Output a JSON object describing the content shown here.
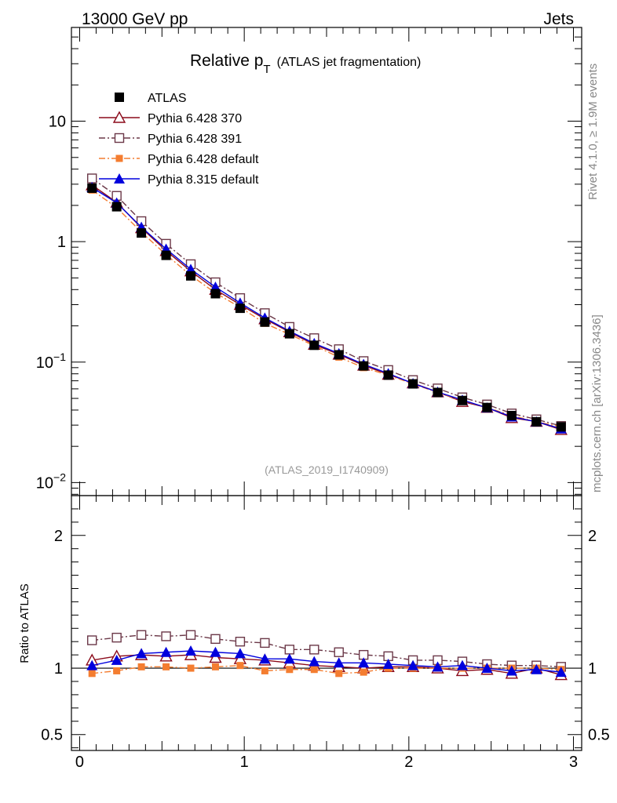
{
  "header": {
    "left": "13000 GeV pp",
    "right": "Jets"
  },
  "side": {
    "rivet": "Rivet 4.1.0, ≥ 1.9M events",
    "mcplots": "mcplots.cern.ch [arXiv:1306.3436]"
  },
  "chart_data": {
    "type": "line",
    "title_main": "Relative p",
    "title_sub": "T",
    "title_paren": "(ATLAS jet fragmentation)",
    "analysis_id": "(ATLAS_2019_I1740909)",
    "x": [
      0.075,
      0.225,
      0.375,
      0.525,
      0.675,
      0.825,
      0.975,
      1.125,
      1.275,
      1.425,
      1.575,
      1.725,
      1.875,
      2.025,
      2.175,
      2.325,
      2.475,
      2.625,
      2.775,
      2.925
    ],
    "xlim": [
      -0.05,
      3.05
    ],
    "xticks": [
      0,
      1,
      2,
      3
    ],
    "xticklabels": [
      "0",
      "1",
      "2",
      "3"
    ],
    "main": {
      "yscale": "log",
      "ylim": [
        0.0078,
        60
      ],
      "yticks": [
        {
          "value": 10,
          "base": "10",
          "exp": ""
        },
        {
          "value": 1,
          "base": "1",
          "exp": ""
        },
        {
          "value": 0.1,
          "base": "10",
          "exp": "−1"
        },
        {
          "value": 0.01,
          "base": "10",
          "exp": "−2"
        }
      ]
    },
    "ratio": {
      "ylabel": "Ratio to ATLAS",
      "ylim": [
        0.38,
        2.3
      ],
      "yticks": [
        {
          "value": 2,
          "label": "2"
        },
        {
          "value": 1,
          "label": "1"
        },
        {
          "value": 0.5,
          "label": "0.5"
        }
      ]
    },
    "series": [
      {
        "name": "ATLAS",
        "color": "#000000",
        "marker": "filled-square",
        "line": "none",
        "values": [
          2.78,
          1.95,
          1.18,
          0.77,
          0.52,
          0.37,
          0.28,
          0.215,
          0.172,
          0.138,
          0.115,
          0.093,
          0.078,
          0.066,
          0.056,
          0.048,
          0.042,
          0.036,
          0.032,
          0.029
        ]
      },
      {
        "name": "Pythia 6.428 370",
        "color": "#8b0a1a",
        "marker": "open-triangle",
        "line": "solid",
        "values": [
          2.95,
          2.12,
          1.3,
          0.84,
          0.57,
          0.4,
          0.3,
          0.228,
          0.178,
          0.14,
          0.116,
          0.094,
          0.079,
          0.067,
          0.0565,
          0.047,
          0.042,
          0.0345,
          0.0321,
          0.0275
        ],
        "ratio": [
          1.06,
          1.09,
          1.1,
          1.09,
          1.1,
          1.08,
          1.07,
          1.06,
          1.04,
          1.02,
          1.01,
          1.0,
          1.01,
          1.01,
          1.0,
          0.98,
          0.99,
          0.96,
          1.0,
          0.95
        ]
      },
      {
        "name": "Pythia 6.428 391",
        "color": "#6b3848",
        "marker": "open-square",
        "line": "dashdot",
        "values": [
          3.35,
          2.4,
          1.48,
          0.96,
          0.65,
          0.46,
          0.34,
          0.255,
          0.196,
          0.158,
          0.128,
          0.102,
          0.086,
          0.071,
          0.0605,
          0.051,
          0.0445,
          0.0375,
          0.0335,
          0.0295
        ],
        "ratio": [
          1.21,
          1.23,
          1.25,
          1.24,
          1.25,
          1.22,
          1.2,
          1.19,
          1.14,
          1.14,
          1.12,
          1.1,
          1.09,
          1.06,
          1.06,
          1.05,
          1.03,
          1.02,
          1.02,
          1.01
        ]
      },
      {
        "name": "Pythia 6.428 default",
        "color": "#f47d30",
        "marker": "small-filled-square",
        "line": "dashdot",
        "values": [
          2.68,
          1.92,
          1.2,
          0.78,
          0.525,
          0.375,
          0.285,
          0.21,
          0.17,
          0.137,
          0.11,
          0.09,
          0.078,
          0.066,
          0.056,
          0.048,
          0.042,
          0.036,
          0.032,
          0.029
        ],
        "ratio": [
          0.96,
          0.98,
          1.01,
          1.01,
          1.0,
          1.01,
          1.02,
          0.98,
          0.99,
          0.99,
          0.96,
          0.97,
          1.0,
          1.0,
          1.0,
          1.0,
          1.0,
          1.0,
          1.0,
          0.99
        ]
      },
      {
        "name": "Pythia 8.315 default",
        "color": "#0000dd",
        "marker": "filled-triangle",
        "line": "solid",
        "values": [
          2.82,
          2.1,
          1.32,
          0.87,
          0.59,
          0.42,
          0.31,
          0.233,
          0.181,
          0.143,
          0.118,
          0.096,
          0.0805,
          0.0665,
          0.0565,
          0.0485,
          0.0418,
          0.0352,
          0.032,
          0.028
        ],
        "ratio": [
          1.02,
          1.06,
          1.11,
          1.12,
          1.13,
          1.12,
          1.11,
          1.07,
          1.07,
          1.05,
          1.04,
          1.04,
          1.03,
          1.02,
          1.01,
          1.02,
          1.0,
          0.98,
          0.99,
          0.97
        ]
      }
    ]
  }
}
